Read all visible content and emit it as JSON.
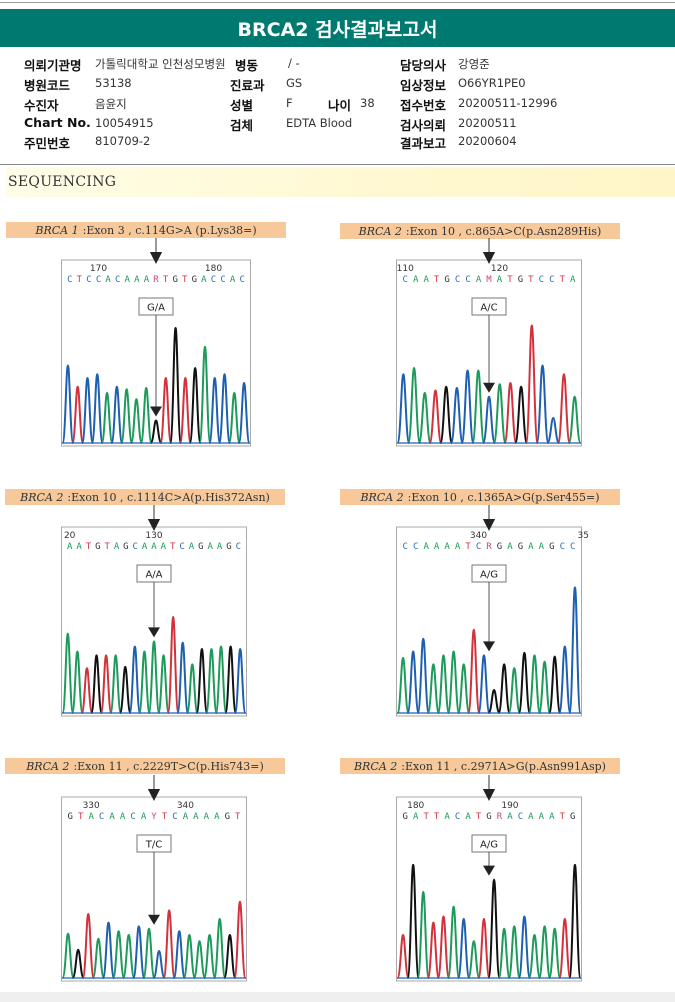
{
  "report": {
    "title": "BRCA2 검사결과보고서",
    "theme_color": "#007a70"
  },
  "patient_info": {
    "left": [
      {
        "label": "의뢰기관명",
        "value": "가톨릭대학교 인천성모병원"
      },
      {
        "label": "병원코드",
        "value": "53138"
      },
      {
        "label": "수진자",
        "value": "음윤지"
      },
      {
        "label": "Chart No.",
        "value": "10054915"
      },
      {
        "label": "주민번호",
        "value": "810709-2"
      }
    ],
    "middle": [
      {
        "label": "병동",
        "value": "/ -"
      },
      {
        "label": "진료과",
        "value": "GS"
      },
      {
        "label": "성별",
        "value": "F"
      },
      {
        "label": "나이",
        "value": "38"
      },
      {
        "label": "검체",
        "value": "EDTA Blood"
      }
    ],
    "right": [
      {
        "label": "담당의사",
        "value": "강영준"
      },
      {
        "label": "임상정보",
        "value": "O66YR1PE0"
      },
      {
        "label": "접수번호",
        "value": "20200511-12996"
      },
      {
        "label": "검사의뢰",
        "value": "20200511"
      },
      {
        "label": "결과보고",
        "value": "20200604"
      }
    ]
  },
  "section": {
    "title": "SEQUENCING"
  },
  "base_colors": {
    "A": "#1e9a5a",
    "C": "#2a6db5",
    "G": "#333333",
    "T": "#d03a45",
    "R": "#c8457a",
    "M": "#c8457a",
    "Y": "#c8457a"
  },
  "trace_colors": {
    "A": "#1e9a5a",
    "C": "#1f5fb0",
    "G": "#111111",
    "T": "#d2323c"
  },
  "chart_data": [
    {
      "type": "chromatogram",
      "gene": "BRCA 1",
      "caption": "Exon 3 , c.114G>A (p.Lys38=)",
      "sequence": "CTCCACAAARTGTGACCAC",
      "position_ticks": [
        {
          "label": "170",
          "index": 3
        },
        {
          "label": "180",
          "index": 15
        }
      ],
      "genotype": "G/A",
      "variant_index": 9,
      "peaks": [
        [
          "C",
          0.62
        ],
        [
          "T",
          0.45
        ],
        [
          "C",
          0.52
        ],
        [
          "C",
          0.55
        ],
        [
          "A",
          0.4
        ],
        [
          "C",
          0.45
        ],
        [
          "A",
          0.43
        ],
        [
          "A",
          0.35
        ],
        [
          "A",
          0.44
        ],
        [
          "G",
          0.18
        ],
        [
          "T",
          0.52
        ],
        [
          "G",
          0.92
        ],
        [
          "T",
          0.52
        ],
        [
          "G",
          0.6
        ],
        [
          "A",
          0.77
        ],
        [
          "C",
          0.52
        ],
        [
          "C",
          0.55
        ],
        [
          "A",
          0.4
        ],
        [
          "C",
          0.48
        ]
      ]
    },
    {
      "type": "chromatogram",
      "gene": "BRCA 2",
      "caption": "Exon 10 , c.865A>C(p.Asn289His)",
      "sequence": "CAATGCCAMATGTCCTA",
      "position_ticks": [
        {
          "label": "110",
          "index": 0
        },
        {
          "label": "120",
          "index": 9
        }
      ],
      "genotype": "A/C",
      "variant_index": 8,
      "peaks": [
        [
          "C",
          0.55
        ],
        [
          "A",
          0.6
        ],
        [
          "A",
          0.4
        ],
        [
          "T",
          0.42
        ],
        [
          "G",
          0.45
        ],
        [
          "C",
          0.44
        ],
        [
          "C",
          0.58
        ],
        [
          "A",
          0.58
        ],
        [
          "C",
          0.37
        ],
        [
          "A",
          0.47
        ],
        [
          "T",
          0.48
        ],
        [
          "G",
          0.45
        ],
        [
          "T",
          0.94
        ],
        [
          "C",
          0.62
        ],
        [
          "C",
          0.2
        ],
        [
          "T",
          0.55
        ],
        [
          "A",
          0.37
        ]
      ]
    },
    {
      "type": "chromatogram",
      "gene": "BRCA 2",
      "caption": "Exon 10 , c.1114C>A(p.His372Asn)",
      "sequence": "AATGTAGCAAATCAGAAGC",
      "position_ticks": [
        {
          "label": "20",
          "index": 0
        },
        {
          "label": "130",
          "index": 9
        }
      ],
      "genotype": "A/A",
      "variant_index": 9,
      "peaks": [
        [
          "A",
          0.62
        ],
        [
          "A",
          0.48
        ],
        [
          "T",
          0.35
        ],
        [
          "G",
          0.45
        ],
        [
          "T",
          0.45
        ],
        [
          "A",
          0.45
        ],
        [
          "G",
          0.36
        ],
        [
          "C",
          0.52
        ],
        [
          "A",
          0.48
        ],
        [
          "A",
          0.56
        ],
        [
          "A",
          0.45
        ],
        [
          "T",
          0.75
        ],
        [
          "C",
          0.55
        ],
        [
          "A",
          0.38
        ],
        [
          "G",
          0.5
        ],
        [
          "A",
          0.5
        ],
        [
          "A",
          0.52
        ],
        [
          "G",
          0.52
        ],
        [
          "C",
          0.5
        ]
      ]
    },
    {
      "type": "chromatogram",
      "gene": "BRCA 2",
      "caption": "Exon 10 , c.1365A>G(p.Ser455=)",
      "sequence": "CCAAAATCRGAGAAGCC",
      "position_ticks": [
        {
          "label": "340",
          "index": 7
        },
        {
          "label": "35",
          "index": 17
        }
      ],
      "genotype": "A/G",
      "variant_index": 8,
      "peaks": [
        [
          "A",
          0.43
        ],
        [
          "C",
          0.48
        ],
        [
          "C",
          0.58
        ],
        [
          "A",
          0.38
        ],
        [
          "A",
          0.45
        ],
        [
          "A",
          0.48
        ],
        [
          "A",
          0.38
        ],
        [
          "T",
          0.65
        ],
        [
          "C",
          0.45
        ],
        [
          "G",
          0.18
        ],
        [
          "G",
          0.38
        ],
        [
          "A",
          0.35
        ],
        [
          "G",
          0.47
        ],
        [
          "A",
          0.45
        ],
        [
          "A",
          0.4
        ],
        [
          "G",
          0.44
        ],
        [
          "C",
          0.52
        ],
        [
          "C",
          0.98
        ]
      ]
    },
    {
      "type": "chromatogram",
      "gene": "BRCA 2",
      "caption": "Exon 11 , c.2229T>C(p.His743=)",
      "sequence": "GTACAACAYTCAAAAGT",
      "position_ticks": [
        {
          "label": "330",
          "index": 2
        },
        {
          "label": "340",
          "index": 11
        }
      ],
      "genotype": "T/C",
      "variant_index": 8,
      "peaks": [
        [
          "A",
          0.36
        ],
        [
          "G",
          0.23
        ],
        [
          "T",
          0.52
        ],
        [
          "A",
          0.32
        ],
        [
          "C",
          0.45
        ],
        [
          "A",
          0.38
        ],
        [
          "A",
          0.35
        ],
        [
          "C",
          0.42
        ],
        [
          "A",
          0.4
        ],
        [
          "C",
          0.22
        ],
        [
          "T",
          0.55
        ],
        [
          "C",
          0.38
        ],
        [
          "A",
          0.35
        ],
        [
          "A",
          0.3
        ],
        [
          "A",
          0.35
        ],
        [
          "A",
          0.48
        ],
        [
          "G",
          0.35
        ],
        [
          "T",
          0.62
        ]
      ]
    },
    {
      "type": "chromatogram",
      "gene": "BRCA 2",
      "caption": "Exon 11 , c.2971A>G(p.Asn991Asp)",
      "sequence": "GATTACATGRACAAATG",
      "position_ticks": [
        {
          "label": "180",
          "index": 1
        },
        {
          "label": "190",
          "index": 10
        }
      ],
      "genotype": "A/G",
      "variant_index": 9,
      "peaks": [
        [
          "T",
          0.35
        ],
        [
          "G",
          0.92
        ],
        [
          "A",
          0.7
        ],
        [
          "T",
          0.45
        ],
        [
          "T",
          0.5
        ],
        [
          "A",
          0.58
        ],
        [
          "C",
          0.48
        ],
        [
          "A",
          0.3
        ],
        [
          "T",
          0.48
        ],
        [
          "G",
          0.8
        ],
        [
          "A",
          0.4
        ],
        [
          "A",
          0.42
        ],
        [
          "C",
          0.5
        ],
        [
          "A",
          0.35
        ],
        [
          "A",
          0.42
        ],
        [
          "A",
          0.4
        ],
        [
          "T",
          0.48
        ],
        [
          "G",
          0.92
        ]
      ]
    }
  ]
}
